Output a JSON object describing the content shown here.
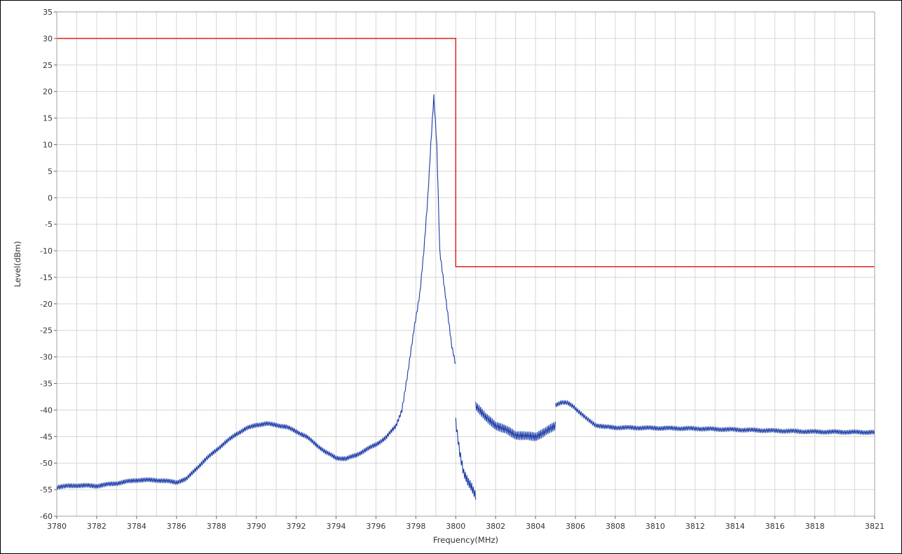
{
  "chart_data": {
    "type": "line",
    "xlabel": "Frequency(MHz)",
    "ylabel": "Level(dBm)",
    "xlim": [
      3780,
      3821
    ],
    "ylim": [
      -60,
      35
    ],
    "grid": true,
    "x_ticks": [
      3780,
      3782,
      3784,
      3786,
      3788,
      3790,
      3792,
      3794,
      3796,
      3798,
      3800,
      3802,
      3804,
      3806,
      3808,
      3810,
      3812,
      3814,
      3816,
      3818,
      3821
    ],
    "y_ticks": [
      35,
      30,
      25,
      20,
      15,
      10,
      5,
      0,
      -5,
      -10,
      -15,
      -20,
      -25,
      -30,
      -35,
      -40,
      -45,
      -50,
      -55,
      -60
    ],
    "colors": {
      "limit": "#dd2222",
      "spectrum": "#1a3aa6",
      "grid": "#d6d6d6"
    },
    "series": [
      {
        "segments": [
          {
            "x": [
              3780,
              3800,
              3800,
              3821
            ],
            "y": [
              30,
              30,
              -13,
              -13
            ]
          }
        ]
      },
      {
        "segments": [
          {
            "x": [
              3780,
              3781,
              3782,
              3783,
              3784,
              3785,
              3786,
              3786.5,
              3787,
              3787.5,
              3788,
              3788.5,
              3789,
              3789.5,
              3790,
              3790.5,
              3791,
              3791.5,
              3792,
              3792.5,
              3793,
              3793.5,
              3794,
              3794.5,
              3795,
              3795.5,
              3796,
              3796.5,
              3797,
              3797.3,
              3797.6,
              3797.9,
              3798.2,
              3798.4,
              3798.6,
              3798.75,
              3798.9,
              3799.05,
              3799.2,
              3799.4,
              3799.6,
              3799.8,
              3800
            ],
            "y": [
              -54.5,
              -54.2,
              -54.3,
              -53.8,
              -53.2,
              -53.2,
              -53.6,
              -53,
              -51,
              -49.2,
              -47.5,
              -46,
              -44.5,
              -43.5,
              -42.8,
              -42.6,
              -42.8,
              -43.2,
              -44,
              -45,
              -46.5,
              -48,
              -49,
              -49.2,
              -48.5,
              -47.5,
              -46.5,
              -45.2,
              -43,
              -40,
              -33,
              -25,
              -18,
              -10,
              0,
              10,
              19,
              10,
              -10,
              -16,
              -22,
              -28,
              -31.5
            ]
          },
          {
            "x": [
              3800,
              3800.2,
              3800.4,
              3800.6,
              3800.8,
              3801
            ],
            "y": [
              -42,
              -48,
              -52,
              -53.5,
              -54.5,
              -56
            ]
          },
          {
            "x": [
              3801,
              3801.5,
              3802,
              3802.5,
              3803,
              3803.5,
              3804,
              3804.5,
              3805
            ],
            "y": [
              -39,
              -41.5,
              -42.8,
              -43.8,
              -44.6,
              -45,
              -44.9,
              -44.2,
              -42.8
            ]
          },
          {
            "x": [
              3805,
              3805.3,
              3805.6,
              3805.9,
              3806.2,
              3806.6,
              3807,
              3807.5,
              3808,
              3810,
              3812,
              3814,
              3816,
              3818,
              3821
            ],
            "y": [
              -39,
              -38.6,
              -38.7,
              -39.3,
              -40.4,
              -41.8,
              -42.8,
              -43.2,
              -43.3,
              -43.4,
              -43.5,
              -43.7,
              -43.9,
              -44.1,
              -44.2
            ]
          }
        ]
      }
    ]
  }
}
